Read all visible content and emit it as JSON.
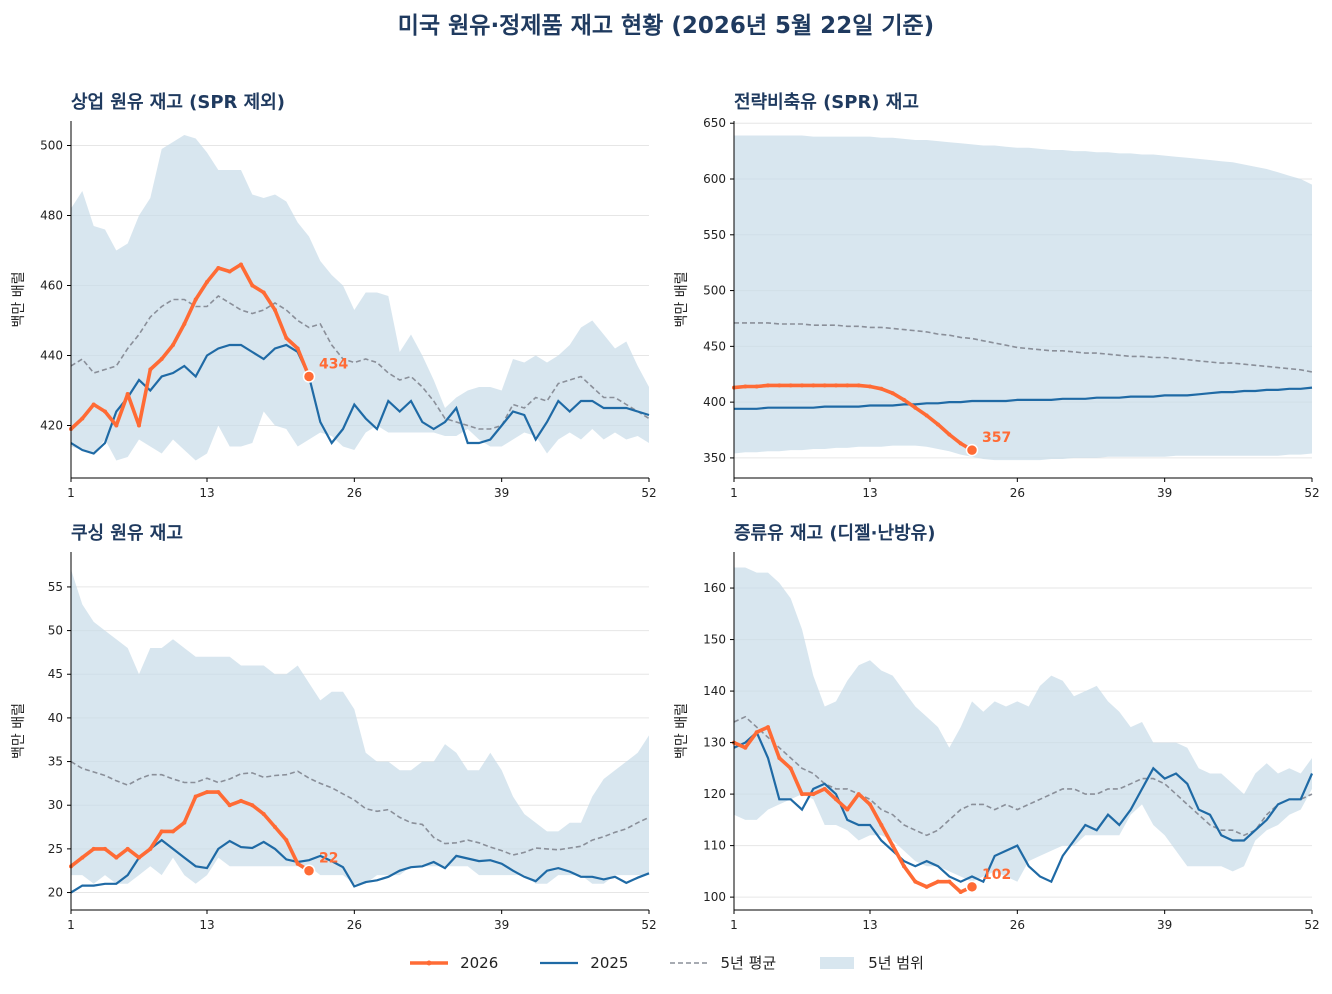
{
  "page": {
    "title": "미국 원유·정제품 재고 현황 (2026년 5월 22일 기준)"
  },
  "legend": {
    "items": [
      {
        "label": "2026",
        "kind": "line-2026"
      },
      {
        "label": "2025",
        "kind": "line-2025"
      },
      {
        "label": "5년 평균",
        "kind": "dashed"
      },
      {
        "label": "5년 범위",
        "kind": "band"
      }
    ]
  },
  "colors": {
    "y2026": "#ff6b35",
    "y2025": "#1f6aa5",
    "avg": "#8a8f99",
    "band": "#c7dbe8",
    "title": "#1f3a5f"
  },
  "chart_data": [
    {
      "type": "line",
      "title": "상업 원유 재고 (SPR 제외)",
      "ylabel": "백만 배럴",
      "xlim": [
        1,
        52
      ],
      "ylim": [
        405,
        507
      ],
      "xticks": [
        1,
        13,
        26,
        39,
        52
      ],
      "yticks": [
        420,
        440,
        460,
        480,
        500
      ],
      "endpoint_label": "434",
      "band_upper": [
        482,
        487,
        477,
        476,
        470,
        472,
        480,
        485,
        499,
        501,
        503,
        502,
        498,
        493,
        493,
        493,
        486,
        485,
        486,
        484,
        478,
        474,
        467,
        463,
        460,
        453,
        458,
        458,
        457,
        441,
        446,
        440,
        433,
        425,
        428,
        430,
        431,
        431,
        430,
        439,
        438,
        440,
        438,
        440,
        443,
        448,
        450,
        446,
        442,
        444,
        437,
        431
      ],
      "band_lower": [
        414,
        413,
        412,
        416,
        410,
        411,
        416,
        414,
        412,
        416,
        413,
        410,
        412,
        420,
        414,
        414,
        415,
        424,
        420,
        419,
        414,
        416,
        418,
        417,
        414,
        413,
        418,
        420,
        418,
        418,
        418,
        418,
        418,
        417,
        417,
        419,
        416,
        414,
        414,
        416,
        418,
        417,
        412,
        416,
        418,
        416,
        419,
        416,
        418,
        416,
        417,
        415
      ],
      "avg": [
        437,
        439,
        435,
        436,
        437,
        442,
        446,
        451,
        454,
        456,
        456,
        454,
        454,
        457,
        455,
        453,
        452,
        453,
        455,
        453,
        450,
        448,
        449,
        443,
        439,
        438,
        439,
        438,
        435,
        433,
        434,
        431,
        427,
        422,
        421,
        420,
        419,
        419,
        420,
        426,
        425,
        428,
        427,
        432,
        433,
        434,
        431,
        428,
        428,
        426,
        424,
        422
      ],
      "y2025": [
        415,
        413,
        412,
        415,
        424,
        428,
        433,
        430,
        434,
        435,
        437,
        434,
        440,
        442,
        443,
        443,
        441,
        439,
        442,
        443,
        441,
        434,
        421,
        415,
        419,
        426,
        422,
        419,
        427,
        424,
        427,
        421,
        419,
        421,
        425,
        415,
        415,
        416,
        420,
        424,
        423,
        416,
        421,
        427,
        424,
        427,
        427,
        425,
        425,
        425,
        424,
        423
      ],
      "y2026": [
        419,
        422,
        426,
        424,
        420,
        429,
        420,
        436,
        439,
        443,
        449,
        456,
        461,
        465,
        464,
        466,
        460,
        458,
        453,
        445,
        442,
        434
      ]
    },
    {
      "type": "line",
      "title": "전략비축유 (SPR) 재고",
      "ylabel": "백만 배럴",
      "xlim": [
        1,
        52
      ],
      "ylim": [
        332,
        652
      ],
      "xticks": [
        1,
        13,
        26,
        39,
        52
      ],
      "yticks": [
        350,
        400,
        450,
        500,
        550,
        600,
        650
      ],
      "endpoint_label": "357",
      "band_upper": [
        639,
        639,
        639,
        639,
        639,
        639,
        639,
        638,
        638,
        638,
        638,
        638,
        638,
        637,
        637,
        636,
        635,
        635,
        634,
        633,
        632,
        631,
        630,
        630,
        629,
        628,
        628,
        627,
        626,
        626,
        625,
        625,
        624,
        624,
        623,
        623,
        622,
        622,
        621,
        620,
        619,
        618,
        617,
        616,
        615,
        613,
        611,
        609,
        606,
        603,
        600,
        595
      ],
      "band_lower": [
        354,
        355,
        355,
        356,
        356,
        357,
        357,
        358,
        358,
        359,
        359,
        360,
        360,
        360,
        361,
        361,
        361,
        360,
        358,
        356,
        353,
        351,
        349,
        348,
        348,
        348,
        348,
        348,
        349,
        349,
        350,
        350,
        350,
        351,
        351,
        351,
        351,
        351,
        351,
        352,
        352,
        352,
        352,
        352,
        352,
        352,
        352,
        352,
        352,
        353,
        353,
        354
      ],
      "avg": [
        471,
        471,
        471,
        471,
        470,
        470,
        470,
        469,
        469,
        469,
        468,
        468,
        467,
        467,
        466,
        465,
        464,
        463,
        461,
        460,
        458,
        457,
        455,
        453,
        451,
        449,
        448,
        447,
        446,
        446,
        445,
        444,
        444,
        443,
        442,
        441,
        441,
        440,
        440,
        439,
        438,
        437,
        436,
        435,
        435,
        434,
        433,
        432,
        431,
        430,
        429,
        427
      ],
      "y2025": [
        394,
        394,
        394,
        395,
        395,
        395,
        395,
        395,
        396,
        396,
        396,
        396,
        397,
        397,
        397,
        398,
        398,
        399,
        399,
        400,
        400,
        401,
        401,
        401,
        401,
        402,
        402,
        402,
        402,
        403,
        403,
        403,
        404,
        404,
        404,
        405,
        405,
        405,
        406,
        406,
        406,
        407,
        408,
        409,
        409,
        410,
        410,
        411,
        411,
        412,
        412,
        413
      ],
      "y2026": [
        413,
        414,
        414,
        415,
        415,
        415,
        415,
        415,
        415,
        415,
        415,
        415,
        414,
        412,
        408,
        402,
        395,
        388,
        380,
        371,
        363,
        357
      ]
    },
    {
      "type": "line",
      "title": "쿠싱 원유 재고",
      "ylabel": "백만 배럴",
      "xlim": [
        1,
        52
      ],
      "ylim": [
        18,
        59
      ],
      "xticks": [
        1,
        13,
        26,
        39,
        52
      ],
      "yticks": [
        20,
        25,
        30,
        35,
        40,
        45,
        50,
        55
      ],
      "endpoint_label": "22",
      "band_upper": [
        57,
        53,
        51,
        50,
        49,
        48,
        45,
        48,
        48,
        49,
        48,
        47,
        47,
        47,
        47,
        46,
        46,
        46,
        45,
        45,
        46,
        44,
        42,
        43,
        43,
        41,
        36,
        35,
        35,
        34,
        34,
        35,
        35,
        37,
        36,
        34,
        34,
        36,
        34,
        31,
        29,
        28,
        27,
        27,
        28,
        28,
        31,
        33,
        34,
        35,
        36,
        38
      ],
      "band_lower": [
        22,
        22,
        21,
        22,
        21,
        21,
        22,
        23,
        22,
        24,
        22,
        21,
        22,
        24,
        23,
        23,
        23,
        23,
        23,
        23,
        23,
        23,
        22,
        22,
        22,
        21,
        21,
        22,
        22,
        22,
        23,
        23,
        23,
        23,
        23,
        23,
        22,
        22,
        22,
        22,
        22,
        21,
        21,
        22,
        22,
        22,
        21,
        21,
        22,
        22,
        22,
        22
      ],
      "avg": [
        35,
        34.2,
        33.8,
        33.4,
        32.8,
        32.3,
        33,
        33.5,
        33.5,
        33,
        32.6,
        32.6,
        33.1,
        32.6,
        33,
        33.6,
        33.7,
        33.2,
        33.4,
        33.5,
        33.9,
        33.1,
        32.5,
        32,
        31.3,
        30.6,
        29.6,
        29.3,
        29.5,
        28.6,
        28,
        27.8,
        26.3,
        25.6,
        25.7,
        26,
        25.7,
        25.2,
        24.8,
        24.3,
        24.6,
        25.1,
        25,
        24.9,
        25.1,
        25.3,
        26,
        26.4,
        26.9,
        27.3,
        28,
        28.6
      ],
      "y2025": [
        20,
        20.8,
        20.8,
        21,
        21,
        22,
        24,
        25,
        26,
        25,
        24,
        23,
        22.8,
        25,
        25.9,
        25.2,
        25.1,
        25.8,
        25,
        23.8,
        23.5,
        23.7,
        24.2,
        23.6,
        22.9,
        20.7,
        21.2,
        21.4,
        21.8,
        22.5,
        22.9,
        23,
        23.5,
        22.8,
        24.2,
        23.9,
        23.6,
        23.7,
        23.3,
        22.5,
        21.8,
        21.3,
        22.5,
        22.8,
        22.4,
        21.8,
        21.8,
        21.5,
        21.8,
        21.1,
        21.7,
        22.2
      ],
      "y2026": [
        23,
        24,
        25,
        25,
        24,
        25,
        24,
        25,
        27,
        27,
        28,
        31,
        31.5,
        31.5,
        30,
        30.5,
        30,
        29,
        27.5,
        26,
        23.3,
        22.5
      ]
    },
    {
      "type": "line",
      "title": "증류유 재고 (디젤·난방유)",
      "ylabel": "백만 배럴",
      "xlim": [
        1,
        52
      ],
      "ylim": [
        97.5,
        167
      ],
      "xticks": [
        1,
        13,
        26,
        39,
        52
      ],
      "yticks": [
        100,
        110,
        120,
        130,
        140,
        150,
        160
      ],
      "endpoint_label": "102",
      "band_upper": [
        164,
        164,
        163,
        163,
        161,
        158,
        152,
        143,
        137,
        138,
        142,
        145,
        146,
        144,
        143,
        140,
        137,
        135,
        133,
        129,
        133,
        138,
        136,
        138,
        137,
        138,
        137,
        141,
        143,
        142,
        139,
        140,
        141,
        138,
        136,
        133,
        134,
        130,
        130,
        130,
        129,
        125,
        124,
        124,
        122,
        120,
        124,
        126,
        124,
        125,
        124,
        127
      ],
      "band_lower": [
        116,
        115,
        115,
        117,
        118,
        119,
        120,
        119,
        114,
        114,
        113,
        111,
        112,
        112,
        111,
        109,
        107,
        106,
        106,
        105,
        104,
        103,
        104,
        105,
        104,
        103,
        107,
        108,
        109,
        110,
        110,
        112,
        112,
        112,
        112,
        116,
        118,
        114,
        112,
        109,
        106,
        106,
        106,
        106,
        105,
        106,
        111,
        113,
        114,
        116,
        117,
        121
      ],
      "avg": [
        134,
        135,
        133,
        131,
        129,
        127,
        125,
        124,
        122,
        121,
        121,
        120,
        119,
        117,
        116,
        114,
        113,
        112,
        113,
        115,
        117,
        118,
        118,
        117,
        118,
        117,
        118,
        119,
        120,
        121,
        121,
        120,
        120,
        121,
        121,
        122,
        123,
        123,
        122,
        120,
        118,
        116,
        114,
        113,
        113,
        112,
        113,
        116,
        118,
        119,
        119,
        120
      ],
      "y2025": [
        129,
        130,
        132,
        127,
        119,
        119,
        117,
        121,
        122,
        120,
        115,
        114,
        114,
        111,
        109,
        107,
        106,
        107,
        106,
        104,
        103,
        104,
        103,
        108,
        109,
        110,
        106,
        104,
        103,
        108,
        111,
        114,
        113,
        116,
        114,
        117,
        121,
        125,
        123,
        124,
        122,
        117,
        116,
        112,
        111,
        111,
        113,
        115,
        118,
        119,
        119,
        124
      ],
      "y2026": [
        130,
        129,
        132,
        133,
        127,
        125,
        120,
        120,
        121,
        119,
        117,
        120,
        118,
        114,
        110,
        106,
        103,
        102,
        103,
        103,
        101,
        102
      ]
    }
  ]
}
